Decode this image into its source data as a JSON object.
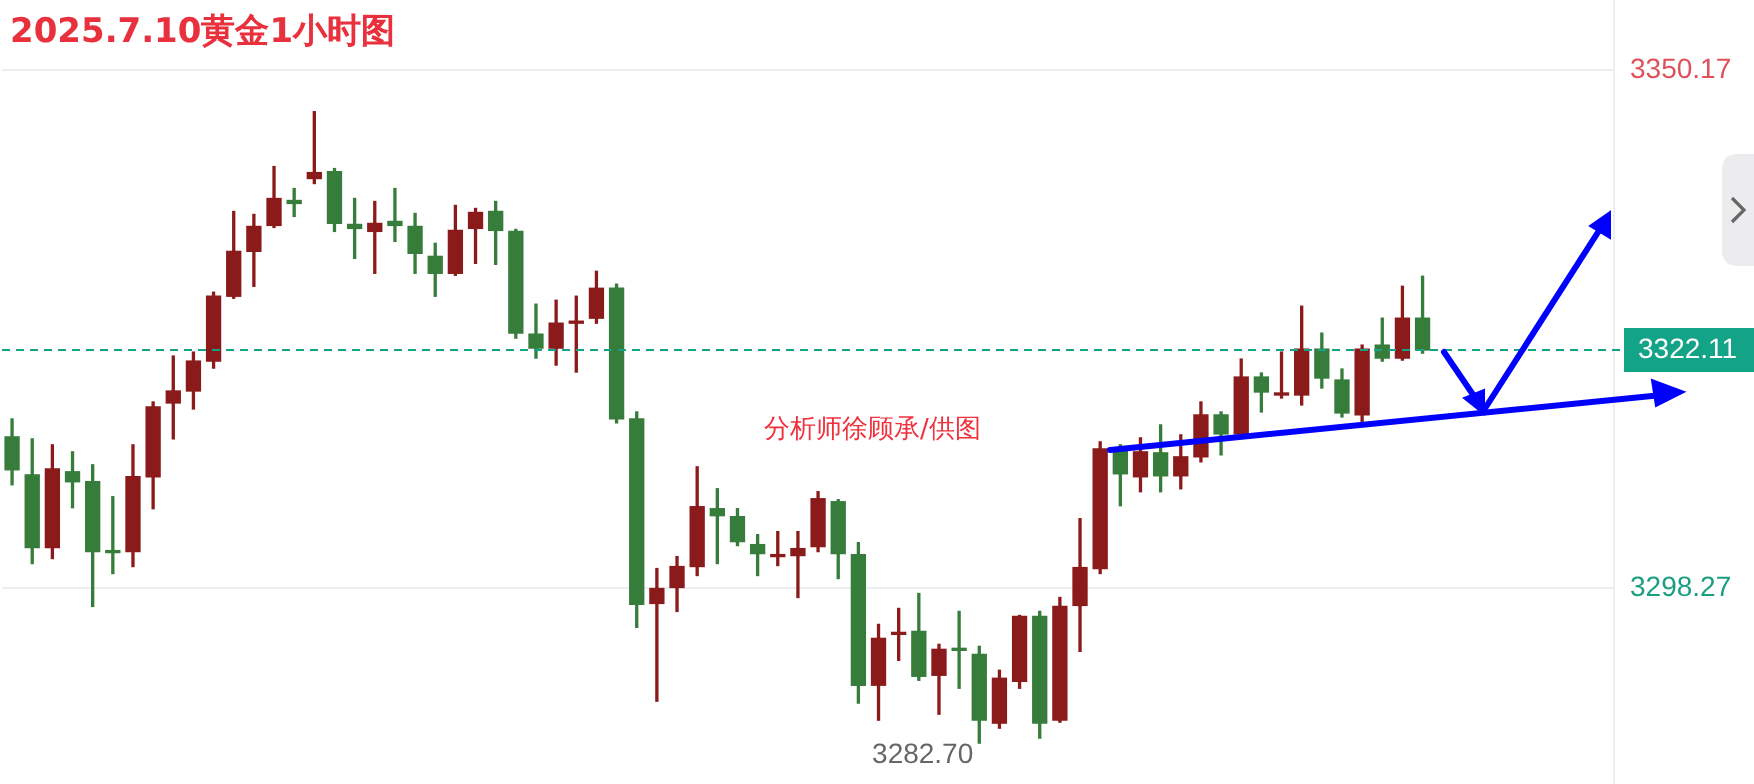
{
  "chart_data": {
    "type": "candlestick",
    "title": "2025.7.10黄金1小时图",
    "categories": [
      null,
      null,
      null,
      null,
      null,
      null,
      null,
      null,
      null,
      null,
      null,
      null,
      null,
      null,
      null,
      null,
      null,
      null,
      null,
      null,
      null,
      null,
      null,
      null,
      null,
      null,
      null,
      null,
      null,
      null,
      null,
      null,
      null,
      null,
      null,
      null,
      null,
      null,
      null,
      null,
      null,
      null,
      null,
      null,
      null,
      null,
      null,
      null,
      null,
      null,
      null,
      null,
      null,
      null,
      null,
      null,
      null,
      null,
      null,
      null,
      null,
      null,
      null,
      null,
      null,
      null,
      null,
      null,
      null,
      null,
      null,
      null,
      null,
      null,
      null,
      null,
      null,
      null,
      null,
      null
    ],
    "ohlc": [
      [
        3313.4,
        3315.2,
        3308.6,
        3310.1
      ],
      [
        3309.6,
        3313.2,
        3300.7,
        3302.3
      ],
      [
        3302.3,
        3312.6,
        3301.2,
        3310.2
      ],
      [
        3309.9,
        3311.9,
        3306.3,
        3308.9
      ],
      [
        3308.9,
        3310.6,
        3296.4,
        3301.9
      ],
      [
        3301.9,
        3307.4,
        3299.7,
        3301.8
      ],
      [
        3301.9,
        3312.6,
        3300.4,
        3309.4
      ],
      [
        3309.4,
        3316.9,
        3306.2,
        3316.4
      ],
      [
        3316.8,
        3321.5,
        3313.2,
        3318.0
      ],
      [
        3318.0,
        3321.9,
        3316.2,
        3321.0
      ],
      [
        3321.0,
        3327.9,
        3320.3,
        3327.5
      ],
      [
        3327.5,
        3336.0,
        3327.3,
        3332.0
      ],
      [
        3332.0,
        3335.7,
        3328.5,
        3334.5
      ],
      [
        3334.6,
        3340.5,
        3334.4,
        3337.3
      ],
      [
        3337.1,
        3338.3,
        3335.5,
        3336.8
      ],
      [
        3339.3,
        3346.0,
        3338.8,
        3339.9
      ],
      [
        3340.0,
        3340.3,
        3334.0,
        3334.8
      ],
      [
        3334.7,
        3337.3,
        3331.3,
        3334.3
      ],
      [
        3334.0,
        3337.0,
        3329.8,
        3334.8
      ],
      [
        3335.0,
        3338.3,
        3333.0,
        3334.6
      ],
      [
        3334.5,
        3335.8,
        3329.8,
        3331.8
      ],
      [
        3331.5,
        3332.8,
        3327.5,
        3329.8
      ],
      [
        3329.8,
        3336.6,
        3329.6,
        3334.1
      ],
      [
        3334.3,
        3336.3,
        3330.8,
        3335.9
      ],
      [
        3336.0,
        3337.0,
        3330.7,
        3334.1
      ],
      [
        3334.0,
        3334.2,
        3323.3,
        3323.8
      ],
      [
        3323.7,
        3326.7,
        3321.3,
        3322.3
      ],
      [
        3322.3,
        3327.1,
        3320.6,
        3324.8
      ],
      [
        3324.8,
        3327.5,
        3319.9,
        3324.9
      ],
      [
        3325.3,
        3330.0,
        3324.8,
        3328.3
      ],
      [
        3328.3,
        3328.7,
        3314.8,
        3315.2
      ],
      [
        3315.2,
        3315.9,
        3294.3,
        3296.6
      ],
      [
        3296.7,
        3300.2,
        3286.9,
        3298.2
      ],
      [
        3298.3,
        3301.4,
        3295.9,
        3300.4
      ],
      [
        3300.4,
        3310.4,
        3299.5,
        3306.4
      ],
      [
        3306.2,
        3308.2,
        3300.7,
        3305.5
      ],
      [
        3305.4,
        3306.2,
        3302.5,
        3302.9
      ],
      [
        3302.6,
        3303.6,
        3299.5,
        3301.7
      ],
      [
        3301.4,
        3303.9,
        3300.5,
        3301.5
      ],
      [
        3301.5,
        3303.9,
        3297.3,
        3302.2
      ],
      [
        3302.4,
        3307.9,
        3301.9,
        3307.2
      ],
      [
        3306.9,
        3307.1,
        3299.2,
        3301.7
      ],
      [
        3301.6,
        3302.8,
        3286.7,
        3288.5
      ],
      [
        3288.5,
        3294.6,
        3285.0,
        3293.2
      ],
      [
        3293.6,
        3296.2,
        3291.0,
        3293.8
      ],
      [
        3293.9,
        3297.7,
        3289.0,
        3289.4
      ],
      [
        3289.5,
        3292.6,
        3285.6,
        3292.1
      ],
      [
        3292.2,
        3295.9,
        3288.2,
        3292.0
      ],
      [
        3291.6,
        3292.4,
        3282.7,
        3285.0
      ],
      [
        3284.7,
        3290.0,
        3284.2,
        3289.2
      ],
      [
        3288.9,
        3295.5,
        3288.2,
        3295.4
      ],
      [
        3295.4,
        3295.9,
        3283.2,
        3284.7
      ],
      [
        3285.0,
        3297.3,
        3284.8,
        3296.4
      ],
      [
        3296.5,
        3305.2,
        3291.9,
        3300.3
      ],
      [
        3300.2,
        3312.9,
        3299.7,
        3312.2
      ],
      [
        3312.2,
        3312.6,
        3306.5,
        3309.7
      ],
      [
        3309.4,
        3313.3,
        3307.9,
        3311.9
      ],
      [
        3311.8,
        3314.6,
        3307.9,
        3309.5
      ],
      [
        3309.5,
        3313.6,
        3308.2,
        3311.4
      ],
      [
        3311.4,
        3316.9,
        3310.9,
        3315.6
      ],
      [
        3315.6,
        3315.9,
        3311.6,
        3313.7
      ],
      [
        3313.7,
        3321.2,
        3313.5,
        3319.4
      ],
      [
        3319.4,
        3319.8,
        3315.9,
        3317.9
      ],
      [
        3317.6,
        3321.9,
        3317.3,
        3317.7
      ],
      [
        3317.6,
        3326.5,
        3316.6,
        3322.2
      ],
      [
        3322.2,
        3323.8,
        3318.3,
        3319.3
      ],
      [
        3319.1,
        3320.2,
        3315.4,
        3315.8
      ],
      [
        3315.6,
        3322.6,
        3314.9,
        3322.2
      ],
      [
        3322.6,
        3325.3,
        3321.0,
        3321.3
      ],
      [
        3321.3,
        3328.5,
        3321.1,
        3325.3
      ],
      [
        3325.3,
        3329.5,
        3321.8,
        3322.11
      ],
      null,
      null,
      null,
      null,
      null,
      null,
      null,
      null,
      null
    ],
    "ylim": [
      3278.6,
      3357.2
    ],
    "yticks": [
      3350.17,
      3298.27
    ],
    "grid": "y",
    "tick_labels": "y",
    "legend": false,
    "ref_lines": [
      {
        "axis": "y",
        "value": 3322.11,
        "label": "3322.11",
        "color": "#13a387",
        "line_style": "dashed"
      }
    ],
    "annotations": [
      "分析师徐顾承/供图",
      "3282.70"
    ]
  }
}
